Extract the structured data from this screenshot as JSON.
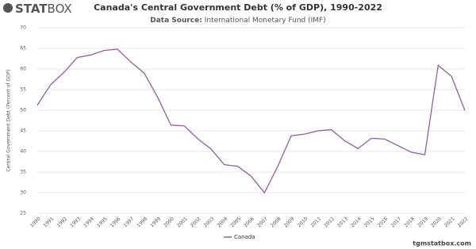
{
  "logo": {
    "bold": "STAT",
    "light": "BOX"
  },
  "footer": "tgmstatbox.com",
  "chart_data": {
    "type": "line",
    "title": "Canada's Central Government Debt (% of GDP), 1990-2022",
    "subtitle_label": "Data Source:",
    "subtitle": "International Monetary Fund (IMF)",
    "y_label": "Central Government Debt (Percent of GDP)",
    "categories": [
      "1990",
      "1991",
      "1992",
      "1993",
      "1994",
      "1995",
      "1996",
      "1997",
      "1998",
      "1999",
      "2000",
      "2001",
      "2002",
      "2003",
      "2004",
      "2005",
      "2006",
      "2007",
      "2008",
      "2009",
      "2010",
      "2011",
      "2012",
      "2013",
      "2014",
      "2015",
      "2016",
      "2017",
      "2018",
      "2019",
      "2020",
      "2021",
      "2022"
    ],
    "series": [
      {
        "name": "Canada",
        "color": "#8e5ea2",
        "values": [
          51.2,
          56.2,
          59.2,
          62.8,
          63.4,
          64.5,
          64.8,
          61.7,
          59.0,
          53.2,
          46.4,
          46.2,
          43.1,
          40.6,
          36.8,
          36.4,
          34.0,
          30.0,
          36.4,
          43.8,
          44.2,
          45.0,
          45.3,
          42.6,
          40.7,
          43.2,
          43.0,
          41.4,
          39.8,
          39.2,
          60.9,
          58.2,
          49.9
        ]
      }
    ],
    "ylim": [
      25,
      70
    ],
    "yticks": [
      25,
      30,
      35,
      40,
      45,
      50,
      55,
      60,
      65,
      70
    ],
    "grid": true
  }
}
